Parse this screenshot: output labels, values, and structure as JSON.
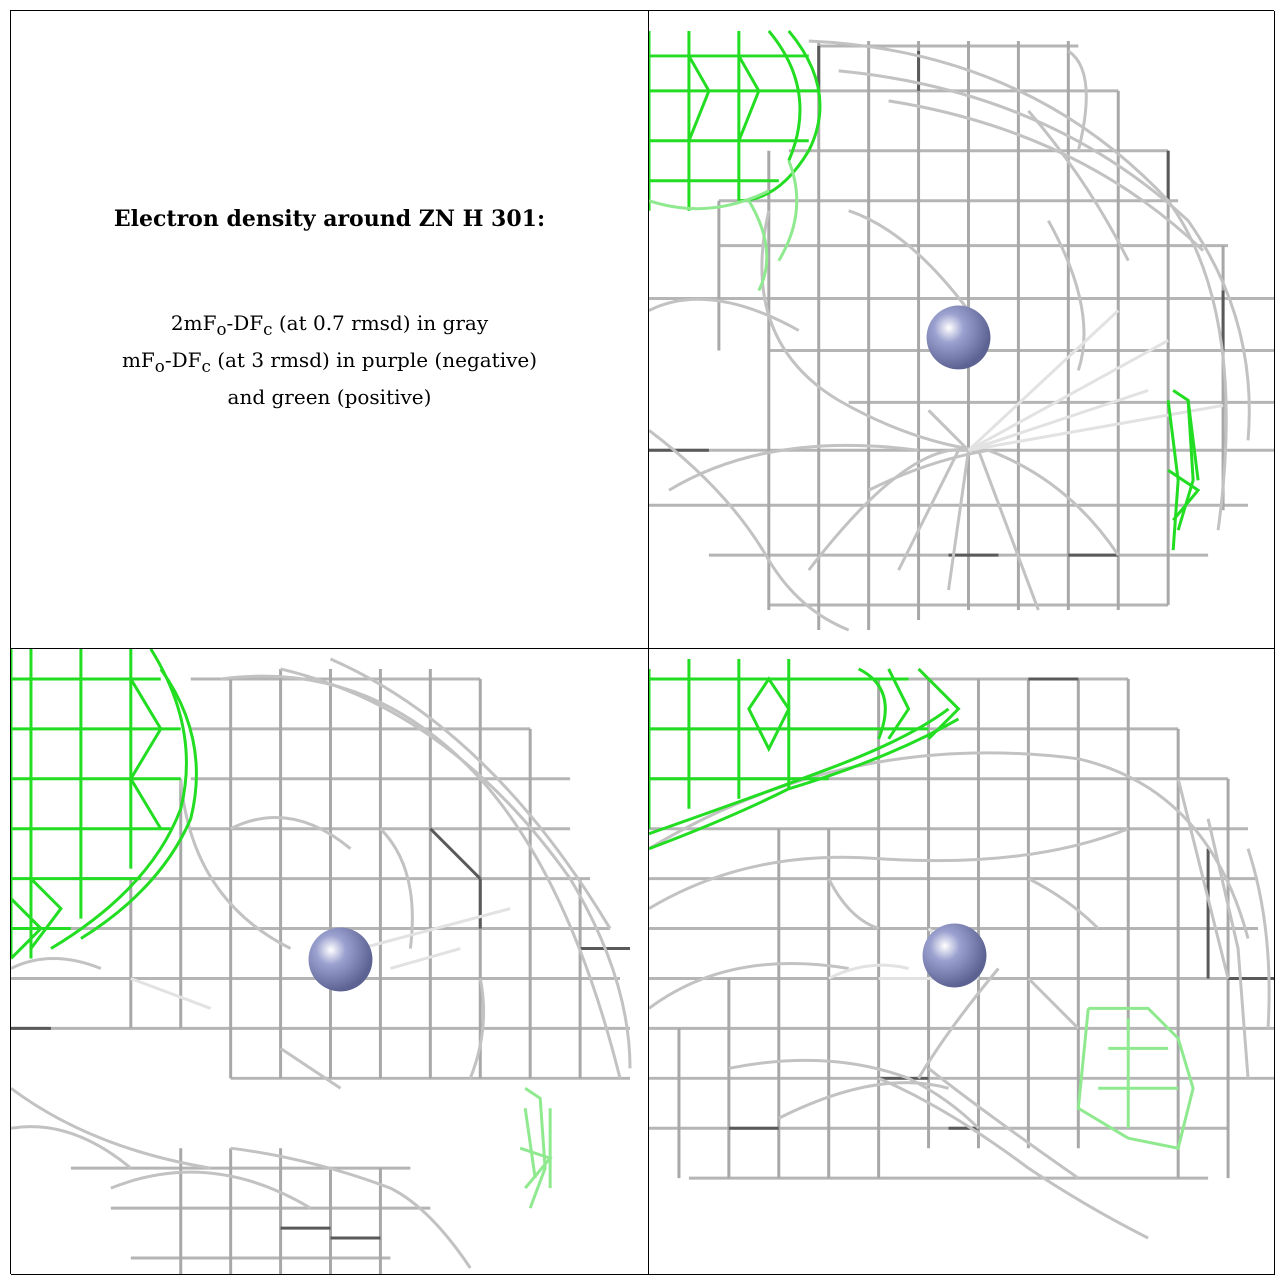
{
  "caption": {
    "title": "Electron density around ZN H 301:",
    "line1": "2mFo-DFc (at 0.7 rmsd) in gray",
    "line2": "mFo-DFc (at 3 rmsd) in purple (negative)",
    "line3": "and green (positive)"
  },
  "colors": {
    "map_2fofc": "#9a9a9a",
    "map_fofc_positive": "#22dd22",
    "zinc_atom": "#8088b8",
    "border": "#000000"
  },
  "panels": [
    {
      "view": "view-1",
      "atom": "ZN"
    },
    {
      "view": "view-2",
      "atom": "ZN"
    },
    {
      "view": "view-3",
      "atom": "ZN"
    }
  ]
}
